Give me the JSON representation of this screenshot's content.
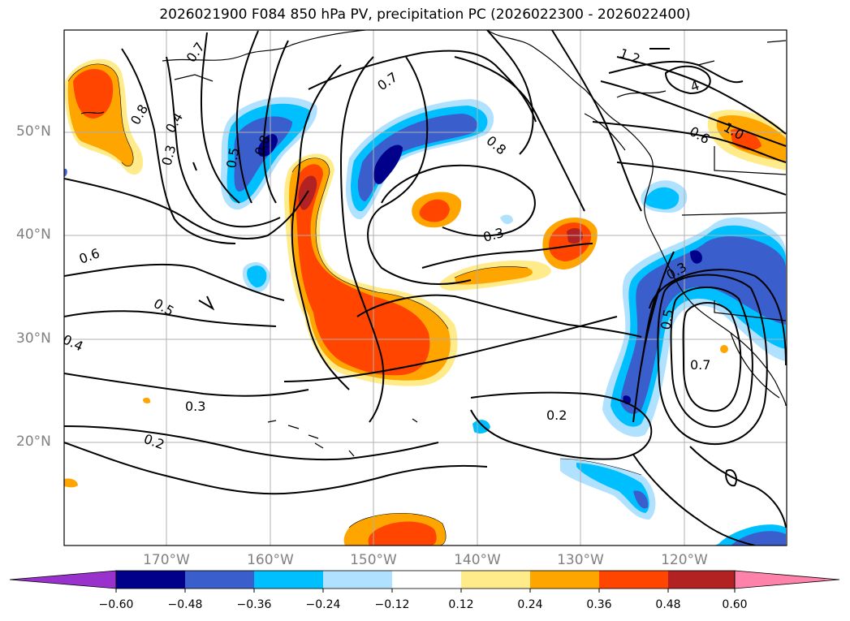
{
  "title": "2026021900 F084 850 hPa PV, precipitation PC (2026022300 - 2026022400)",
  "lat_labels": [
    "50°N",
    "40°N",
    "30°N",
    "20°N"
  ],
  "lon_labels": [
    "170°W",
    "160°W",
    "150°W",
    "140°W",
    "130°W",
    "120°W"
  ],
  "contour_labels": [
    "0.7",
    "0.8",
    "0.4",
    "0.3",
    "0.5",
    "0.8",
    "0.7",
    "0.8",
    "1.2",
    "4",
    "1.0",
    "0.6",
    "0.3",
    "0.6",
    "0.5",
    "0.4",
    "0.3",
    "0.2",
    "0.3",
    "0.5",
    "0.7",
    "0.2"
  ],
  "colorbar": {
    "ticks": [
      "−0.60",
      "−0.48",
      "−0.36",
      "−0.24",
      "−0.12",
      "0.12",
      "0.24",
      "0.36",
      "0.48",
      "0.60"
    ],
    "colors": [
      "#9932cc",
      "#00008b",
      "#3a5fcd",
      "#00bfff",
      "#b0e2ff",
      "#ffffff",
      "#ffeb8a",
      "#ffa500",
      "#ff4500",
      "#b22222",
      "#ff82ab"
    ]
  }
}
